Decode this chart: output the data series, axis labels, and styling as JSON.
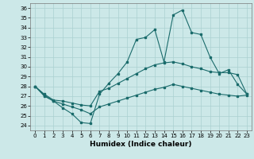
{
  "xlabel": "Humidex (Indice chaleur)",
  "xlim": [
    -0.5,
    23.5
  ],
  "ylim": [
    23.5,
    36.5
  ],
  "xticks": [
    0,
    1,
    2,
    3,
    4,
    5,
    6,
    7,
    8,
    9,
    10,
    11,
    12,
    13,
    14,
    15,
    16,
    17,
    18,
    19,
    20,
    21,
    22,
    23
  ],
  "yticks": [
    24,
    25,
    26,
    27,
    28,
    29,
    30,
    31,
    32,
    33,
    34,
    35,
    36
  ],
  "bg_color": "#cce8e8",
  "line_color": "#1a6b6b",
  "grid_color": "#aad0d0",
  "lines": [
    [
      28,
      27,
      26.5,
      25.8,
      25.2,
      24.3,
      24.2,
      27.2,
      28.3,
      29.3,
      30.5,
      32.8,
      33.0,
      33.8,
      30.5,
      35.3,
      35.8,
      33.5,
      33.3,
      31.0,
      29.3,
      29.7,
      28.2,
      27.2
    ],
    [
      28,
      27.2,
      26.6,
      26.5,
      26.3,
      26.1,
      26.0,
      27.5,
      27.8,
      28.3,
      28.8,
      29.3,
      29.8,
      30.2,
      30.4,
      30.5,
      30.3,
      30.0,
      29.8,
      29.5,
      29.4,
      29.4,
      29.2,
      27.2
    ],
    [
      28,
      27.1,
      26.5,
      26.2,
      25.9,
      25.6,
      25.2,
      25.9,
      26.2,
      26.5,
      26.8,
      27.1,
      27.4,
      27.7,
      27.9,
      28.2,
      28.0,
      27.8,
      27.6,
      27.4,
      27.2,
      27.1,
      27.0,
      27.1
    ]
  ]
}
